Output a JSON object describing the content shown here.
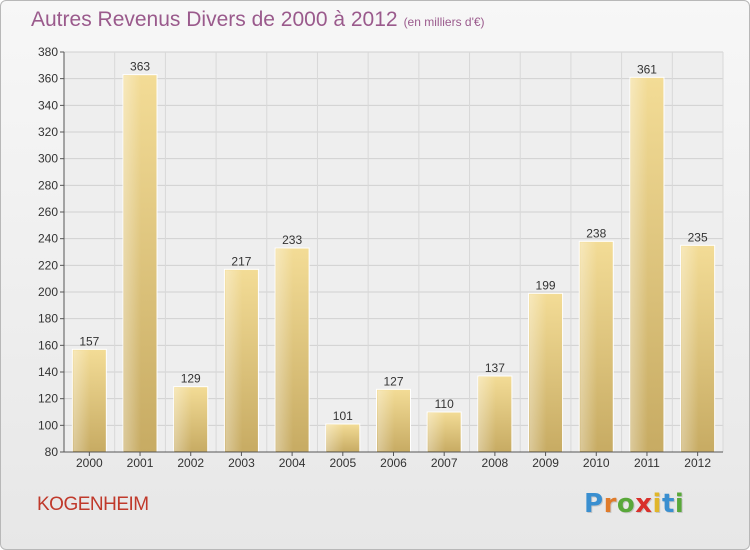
{
  "chart_title": "Autres Revenus Divers de 2000 à 2012",
  "chart_unit": "(en milliers d'€)",
  "commune": "KOGENHEIM",
  "logo": {
    "text": "Proxiti",
    "letters": [
      "P",
      "r",
      "o",
      "x",
      "i",
      "t",
      "i"
    ],
    "colors": [
      "#3a8fd0",
      "#e07b2a",
      "#59a83a",
      "#d9302b",
      "#e0b62a",
      "#3a8fd0",
      "#59a83a"
    ]
  },
  "colors": {
    "title": "#9a5a8c",
    "commune": "#c0392b",
    "bar_light": "#f3dc96",
    "bar_dark": "#c7ab63"
  },
  "chart_data": {
    "type": "bar",
    "title": "Autres Revenus Divers de 2000 à 2012",
    "subtitle": "(en milliers d'€)",
    "categories": [
      "2000",
      "2001",
      "2002",
      "2003",
      "2004",
      "2005",
      "2006",
      "2007",
      "2008",
      "2009",
      "2010",
      "2011",
      "2012"
    ],
    "values": [
      157,
      363,
      129,
      217,
      233,
      101,
      127,
      110,
      137,
      199,
      238,
      361,
      235
    ],
    "ylim": [
      80,
      380
    ],
    "yticks": [
      80,
      100,
      120,
      140,
      160,
      180,
      200,
      220,
      240,
      260,
      280,
      300,
      320,
      340,
      360,
      380
    ],
    "grid": true,
    "xlabel": "",
    "ylabel": ""
  }
}
